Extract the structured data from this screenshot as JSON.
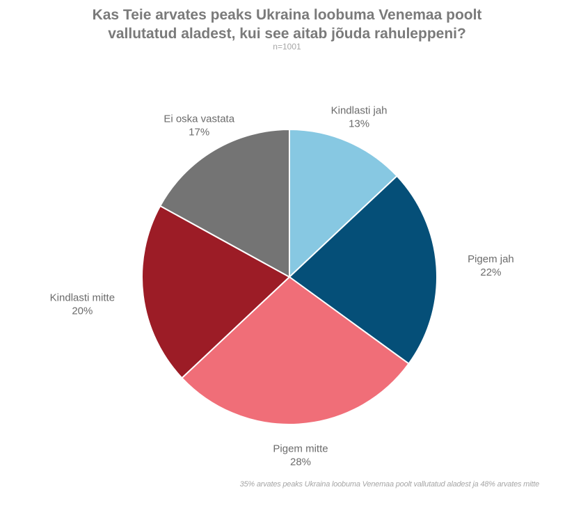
{
  "chart_data": {
    "type": "pie",
    "title_lines": [
      "Kas Teie arvates peaks Ukraina loobuma Venemaa poolt",
      "vallutatud aladest, kui see aitab jõuda rahuleppeni?"
    ],
    "subtitle": "n=1001",
    "slices": [
      {
        "label": "Kindlasti jah",
        "value": 13,
        "value_label": "13%",
        "color": "#87c8e2"
      },
      {
        "label": "Pigem jah",
        "value": 22,
        "value_label": "22%",
        "color": "#054f78"
      },
      {
        "label": "Pigem mitte",
        "value": 28,
        "value_label": "28%",
        "color": "#f06e78"
      },
      {
        "label": "Kindlasti mitte",
        "value": 20,
        "value_label": "20%",
        "color": "#9c1c26"
      },
      {
        "label": "Ei oska vastata",
        "value": 17,
        "value_label": "17%",
        "color": "#747474"
      }
    ],
    "start_angle_deg": 0,
    "direction": "clockwise",
    "legend": "none",
    "footnote": "35% arvates peaks Ukraina loobuma Venemaa poolt vallutatud aladest ja 48% arvates mitte"
  }
}
